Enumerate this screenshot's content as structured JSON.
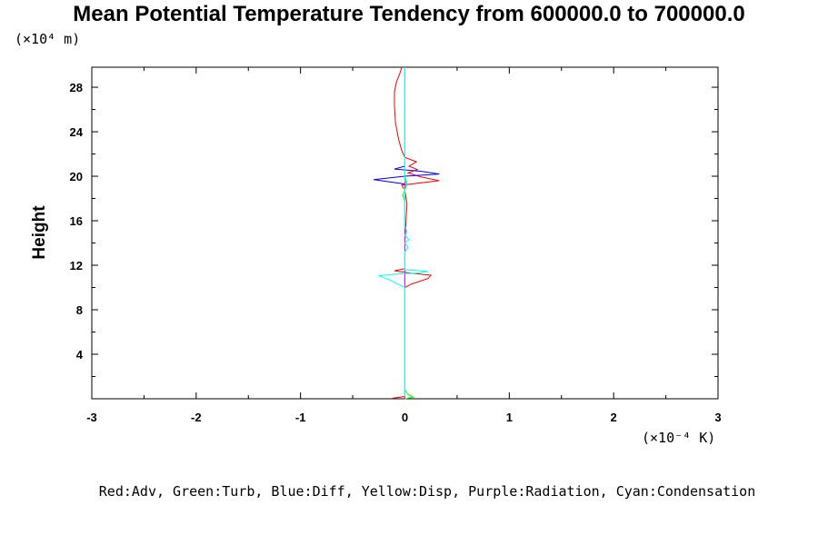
{
  "chart_data": {
    "type": "line",
    "title": "Mean Potential Temperature Tendency from 600000.0 to 700000.0",
    "ylabel": "Height",
    "y_unit_label": "(×10⁴ m)",
    "x_unit_label": "(×10⁻⁴ K)",
    "legend_text": "Red:Adv, Green:Turb, Blue:Diff, Yellow:Disp, Purple:Radiation, Cyan:Condensation",
    "xlim": [
      -3,
      3
    ],
    "ylim": [
      0,
      29.8
    ],
    "x_ticks": [
      "-3",
      "-2",
      "-1",
      "0",
      "1",
      "2",
      "3"
    ],
    "y_ticks": [
      "4",
      "8",
      "12",
      "16",
      "20",
      "24",
      "28"
    ],
    "grid": false,
    "series": [
      {
        "name": "Adv",
        "color": "#ff0000",
        "points": [
          [
            -0.12,
            0.05
          ],
          [
            0.0,
            0.2
          ],
          [
            0.0,
            8.0
          ],
          [
            0.0,
            10.0
          ],
          [
            0.06,
            10.3
          ],
          [
            0.22,
            10.8
          ],
          [
            0.25,
            11.1
          ],
          [
            0.05,
            11.3
          ],
          [
            -0.1,
            11.5
          ],
          [
            0.0,
            11.7
          ],
          [
            0.0,
            14.0
          ],
          [
            0.01,
            16.0
          ],
          [
            0.02,
            17.5
          ],
          [
            0.0,
            18.7
          ],
          [
            -0.03,
            19.2
          ],
          [
            0.33,
            19.6
          ],
          [
            0.15,
            19.95
          ],
          [
            0.03,
            20.3
          ],
          [
            0.12,
            20.6
          ],
          [
            0.04,
            20.9
          ],
          [
            0.11,
            21.3
          ],
          [
            0.0,
            21.7
          ],
          [
            -0.03,
            22.3
          ],
          [
            -0.06,
            23.3
          ],
          [
            -0.09,
            24.8
          ],
          [
            -0.1,
            26.3
          ],
          [
            -0.1,
            27.6
          ],
          [
            -0.08,
            28.5
          ],
          [
            -0.05,
            29.2
          ],
          [
            -0.03,
            29.8
          ]
        ]
      },
      {
        "name": "Turb",
        "color": "#00ff00",
        "points": [
          [
            0.0,
            0.0
          ],
          [
            0.08,
            0.15
          ],
          [
            0.03,
            0.4
          ],
          [
            0.0,
            0.8
          ],
          [
            0.0,
            17.8
          ],
          [
            -0.02,
            18.3
          ],
          [
            0.0,
            18.8
          ],
          [
            0.02,
            19.3
          ],
          [
            0.0,
            20.0
          ],
          [
            0.0,
            29.8
          ]
        ]
      },
      {
        "name": "Diff",
        "color": "#0000ff",
        "points": [
          [
            0.0,
            0.0
          ],
          [
            0.0,
            19.0
          ],
          [
            0.0,
            19.3
          ],
          [
            -0.3,
            19.7
          ],
          [
            0.0,
            20.0
          ],
          [
            0.33,
            20.2
          ],
          [
            0.15,
            20.45
          ],
          [
            -0.1,
            20.65
          ],
          [
            0.0,
            20.9
          ],
          [
            0.0,
            29.8
          ]
        ]
      },
      {
        "name": "Disp",
        "color": "#ffff00",
        "points": [
          [
            0.0,
            0.0
          ],
          [
            0.0,
            18.5
          ],
          [
            -0.01,
            18.8
          ],
          [
            0.0,
            19.1
          ],
          [
            0.0,
            29.8
          ]
        ]
      },
      {
        "name": "Radiation",
        "color": "#ff00ff",
        "points": [
          [
            0.0,
            0.0
          ],
          [
            0.0,
            29.8
          ]
        ]
      },
      {
        "name": "Condensation",
        "color": "#00ffff",
        "points": [
          [
            0.0,
            0.2
          ],
          [
            0.0,
            10.0
          ],
          [
            -0.15,
            10.7
          ],
          [
            -0.25,
            11.05
          ],
          [
            -0.1,
            11.2
          ],
          [
            0.12,
            11.3
          ],
          [
            0.22,
            11.45
          ],
          [
            0.0,
            11.6
          ],
          [
            0.0,
            13.2
          ],
          [
            0.03,
            13.6
          ],
          [
            0.0,
            14.0
          ],
          [
            0.04,
            14.3
          ],
          [
            0.0,
            14.7
          ],
          [
            0.02,
            15.0
          ],
          [
            0.0,
            15.5
          ],
          [
            0.0,
            18.8
          ],
          [
            0.02,
            19.2
          ],
          [
            0.0,
            19.6
          ],
          [
            0.0,
            29.8
          ]
        ]
      }
    ]
  }
}
